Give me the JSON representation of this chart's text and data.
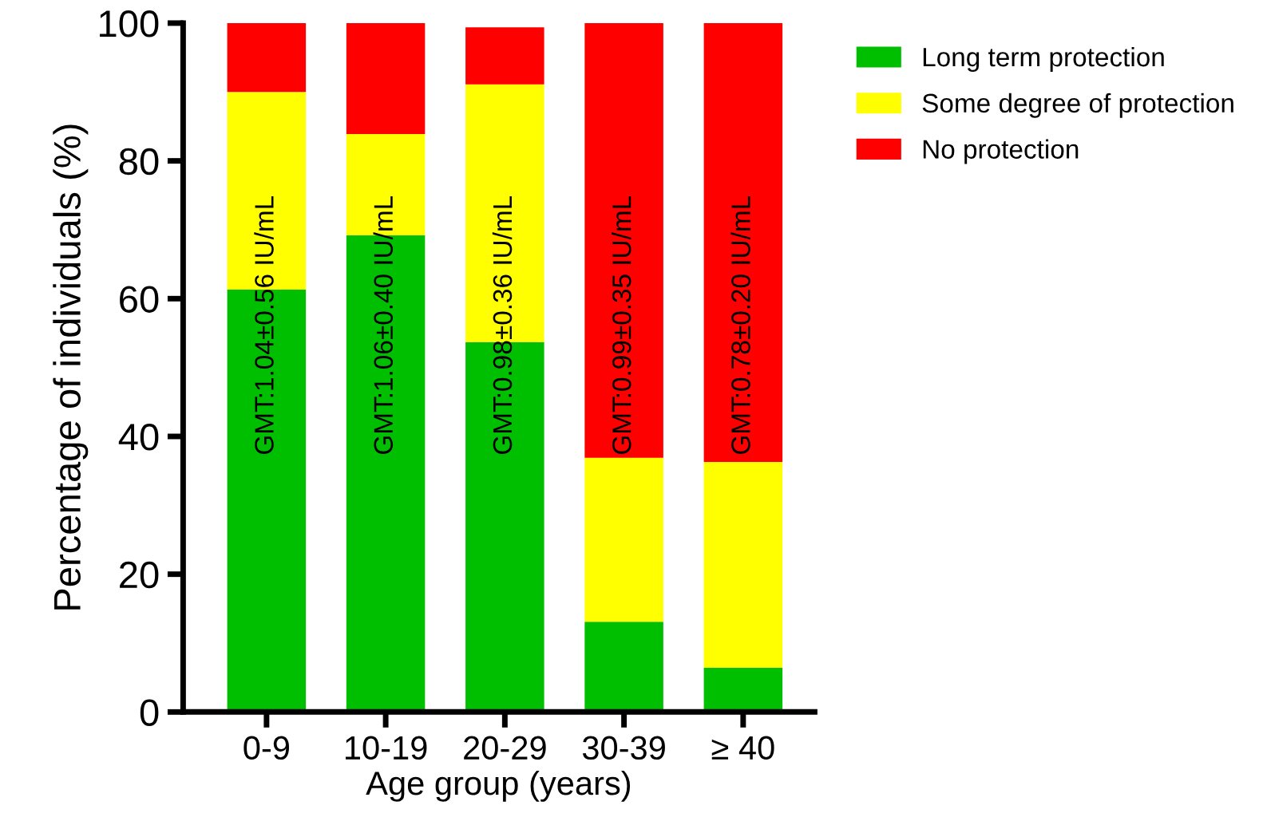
{
  "chart_data": {
    "type": "bar",
    "stacked": true,
    "xlabel": "Age group (years)",
    "ylabel": "Percentage of individuals (%)",
    "categories": [
      "0-9",
      "10-19",
      "20-29",
      "30-39",
      "≥ 40"
    ],
    "series": [
      {
        "name": "Long term protection",
        "color": "#00bf00",
        "values": [
          61.3,
          69.2,
          53.7,
          13.1,
          6.4
        ]
      },
      {
        "name": "Some degree of protection",
        "color": "#ffff00",
        "values": [
          28.7,
          14.7,
          37.4,
          23.8,
          29.9
        ]
      },
      {
        "name": "No protection",
        "color": "#ff0000",
        "values": [
          10.0,
          16.1,
          8.3,
          63.1,
          63.7
        ]
      }
    ],
    "ylim": [
      0,
      100
    ],
    "yticks": [
      0,
      20,
      40,
      60,
      80,
      100
    ],
    "grid": false,
    "legend": "top right",
    "annotations": [
      "GMT:1.04±0.56 IU/mL",
      "GMT:1.06±0.40 IU/mL",
      "GMT:0.98±0.36 IU/mL",
      "GMT:0.99±0.35 IU/mL",
      "GMT:0.78±0.20 IU/mL"
    ]
  }
}
